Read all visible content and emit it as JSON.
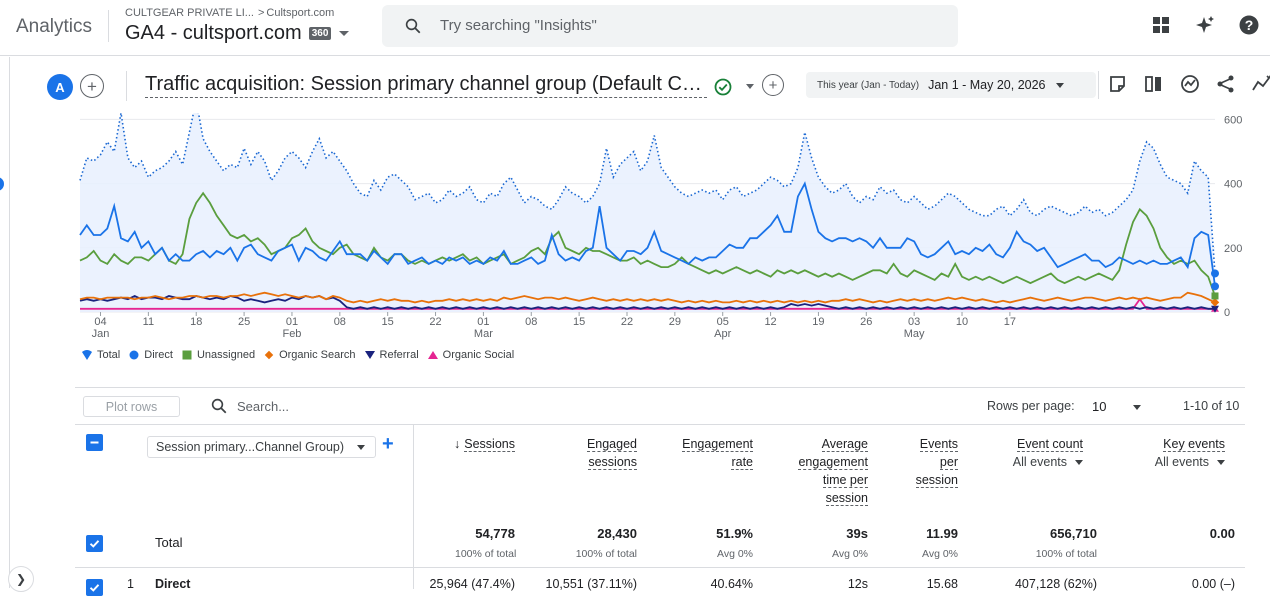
{
  "header": {
    "app_name": "Analytics",
    "account_name": "CULTGEAR PRIVATE LI...",
    "account_sep": ">",
    "property_small": "Cultsport.com",
    "property_name": "GA4 - cultsport.com",
    "badge": "360",
    "search_placeholder": "Try searching \"Insights\""
  },
  "report": {
    "comparison_avatar": "A",
    "title": "Traffic acquisition: Session primary channel group (Default Channel Group)",
    "date_preset": "This year (Jan - Today)",
    "date_range": "Jan 1 - May 20, 2026"
  },
  "chart_data": {
    "type": "line",
    "x_labels": [
      {
        "day": "04",
        "month": "Jan"
      },
      {
        "day": "11",
        "month": ""
      },
      {
        "day": "18",
        "month": ""
      },
      {
        "day": "25",
        "month": ""
      },
      {
        "day": "01",
        "month": "Feb"
      },
      {
        "day": "08",
        "month": ""
      },
      {
        "day": "15",
        "month": ""
      },
      {
        "day": "22",
        "month": ""
      },
      {
        "day": "01",
        "month": "Mar"
      },
      {
        "day": "08",
        "month": ""
      },
      {
        "day": "15",
        "month": ""
      },
      {
        "day": "22",
        "month": ""
      },
      {
        "day": "29",
        "month": ""
      },
      {
        "day": "05",
        "month": "Apr"
      },
      {
        "day": "12",
        "month": ""
      },
      {
        "day": "19",
        "month": ""
      },
      {
        "day": "26",
        "month": ""
      },
      {
        "day": "03",
        "month": "May"
      },
      {
        "day": "10",
        "month": ""
      },
      {
        "day": "17",
        "month": ""
      }
    ],
    "y_ticks": [
      0,
      200,
      400,
      600
    ],
    "ylim": [
      0,
      620
    ],
    "x_start": "2026-01-01",
    "series": [
      {
        "name": "Total",
        "color": "#1a73e8",
        "style": "dotted-area",
        "values": [
          410,
          480,
          470,
          490,
          530,
          500,
          620,
          480,
          450,
          470,
          420,
          440,
          450,
          470,
          500,
          460,
          560,
          660,
          540,
          500,
          470,
          440,
          460,
          450,
          510,
          460,
          500,
          470,
          410,
          440,
          480,
          500,
          480,
          450,
          500,
          540,
          480,
          500,
          470,
          440,
          400,
          370,
          360,
          410,
          380,
          420,
          430,
          410,
          390,
          350,
          360,
          370,
          340,
          350,
          380,
          360,
          370,
          390,
          350,
          340,
          370,
          360,
          400,
          420,
          380,
          340,
          360,
          350,
          330,
          320,
          350,
          390,
          370,
          360,
          340,
          360,
          400,
          510,
          420,
          460,
          480,
          500,
          440,
          470,
          550,
          450,
          420,
          390,
          370,
          360,
          370,
          380,
          370,
          380,
          350,
          380,
          390,
          360,
          370,
          380,
          400,
          420,
          410,
          390,
          400,
          450,
          560,
          480,
          420,
          390,
          370,
          380,
          400,
          360,
          340,
          360,
          350,
          390,
          370,
          380,
          350,
          340,
          360,
          340,
          320,
          330,
          350,
          370,
          360,
          340,
          320,
          310,
          300,
          300,
          320,
          330,
          300,
          320,
          350,
          310,
          300,
          320,
          330,
          320,
          310,
          300,
          310,
          330,
          310,
          320,
          300,
          310,
          330,
          350,
          380,
          470,
          530,
          510,
          460,
          420,
          410,
          400,
          370,
          470,
          440,
          420,
          120
        ]
      },
      {
        "name": "Direct",
        "color": "#1a73e8",
        "values": [
          240,
          270,
          240,
          240,
          260,
          330,
          230,
          220,
          250,
          200,
          220,
          180,
          200,
          160,
          180,
          160,
          160,
          180,
          190,
          170,
          190,
          180,
          200,
          160,
          200,
          210,
          180,
          170,
          160,
          190,
          200,
          210,
          160,
          200,
          190,
          170,
          160,
          190,
          220,
          180,
          180,
          180,
          160,
          190,
          170,
          150,
          180,
          180,
          150,
          160,
          170,
          150,
          160,
          150,
          170,
          160,
          170,
          150,
          160,
          150,
          170,
          160,
          190,
          150,
          150,
          160,
          170,
          150,
          160,
          240,
          180,
          160,
          170,
          160,
          190,
          200,
          330,
          200,
          180,
          160,
          190,
          190,
          180,
          200,
          250,
          190,
          180,
          170,
          160,
          150,
          170,
          160,
          170,
          170,
          190,
          210,
          200,
          200,
          230,
          230,
          250,
          270,
          300,
          250,
          250,
          360,
          400,
          320,
          250,
          230,
          220,
          230,
          230,
          220,
          230,
          220,
          200,
          230,
          200,
          200,
          200,
          230,
          220,
          180,
          170,
          180,
          200,
          220,
          180,
          190,
          180,
          200,
          190,
          210,
          180,
          170,
          200,
          250,
          220,
          210,
          190,
          200,
          170,
          140,
          150,
          160,
          170,
          180,
          160,
          160,
          140,
          150,
          170,
          160,
          150,
          160,
          150,
          160,
          150,
          150,
          160,
          170,
          140,
          230,
          250,
          240,
          80
        ]
      },
      {
        "name": "Unassigned",
        "color": "#5a9e3e",
        "values": [
          160,
          170,
          190,
          160,
          150,
          180,
          160,
          150,
          170,
          170,
          160,
          180,
          200,
          160,
          150,
          180,
          290,
          340,
          370,
          340,
          300,
          270,
          240,
          230,
          240,
          220,
          230,
          210,
          180,
          190,
          200,
          230,
          240,
          260,
          220,
          200,
          190,
          180,
          200,
          210,
          180,
          170,
          160,
          200,
          170,
          160,
          180,
          180,
          160,
          150,
          160,
          150,
          160,
          170,
          160,
          170,
          180,
          160,
          170,
          150,
          160,
          170,
          180,
          150,
          160,
          170,
          190,
          200,
          180,
          230,
          250,
          200,
          190,
          180,
          200,
          190,
          190,
          180,
          170,
          160,
          160,
          170,
          150,
          160,
          150,
          140,
          140,
          150,
          170,
          150,
          140,
          130,
          120,
          130,
          120,
          130,
          140,
          130,
          120,
          130,
          120,
          110,
          130,
          120,
          130,
          120,
          130,
          120,
          110,
          120,
          110,
          120,
          110,
          100,
          110,
          120,
          130,
          130,
          120,
          150,
          120,
          110,
          130,
          120,
          110,
          100,
          120,
          110,
          150,
          110,
          100,
          110,
          100,
          110,
          100,
          90,
          100,
          110,
          100,
          90,
          100,
          110,
          120,
          100,
          90,
          100,
          110,
          100,
          110,
          120,
          110,
          100,
          130,
          210,
          280,
          320,
          300,
          260,
          200,
          170,
          150,
          160,
          150,
          160,
          130,
          110,
          50
        ]
      },
      {
        "name": "Organic Search",
        "color": "#e8710a",
        "values": [
          40,
          45,
          45,
          40,
          45,
          45,
          45,
          45,
          40,
          45,
          45,
          50,
          45,
          40,
          45,
          45,
          50,
          50,
          45,
          50,
          50,
          45,
          50,
          50,
          55,
          50,
          55,
          60,
          55,
          50,
          55,
          50,
          45,
          50,
          45,
          50,
          40,
          50,
          45,
          35,
          30,
          35,
          30,
          35,
          40,
          35,
          40,
          35,
          35,
          30,
          35,
          30,
          35,
          35,
          40,
          35,
          40,
          35,
          40,
          35,
          40,
          35,
          45,
          40,
          45,
          50,
          45,
          40,
          45,
          45,
          40,
          45,
          40,
          35,
          40,
          45,
          40,
          35,
          40,
          35,
          40,
          35,
          40,
          35,
          40,
          35,
          40,
          35,
          30,
          35,
          30,
          35,
          30,
          35,
          30,
          30,
          35,
          30,
          35,
          30,
          35,
          30,
          35,
          30,
          35,
          30,
          35,
          30,
          35,
          30,
          35,
          35,
          40,
          35,
          40,
          35,
          30,
          35,
          30,
          35,
          40,
          35,
          40,
          35,
          40,
          35,
          40,
          45,
          40,
          45,
          40,
          35,
          40,
          35,
          30,
          35,
          30,
          35,
          40,
          45,
          40,
          35,
          40,
          45,
          40,
          35,
          40,
          45,
          45,
          40,
          35,
          40,
          45,
          40,
          45,
          40,
          45,
          40,
          35,
          40,
          45,
          45,
          60,
          55,
          50,
          40,
          30
        ]
      },
      {
        "name": "Referral",
        "color": "#1a237e",
        "values": [
          35,
          40,
          35,
          40,
          35,
          40,
          45,
          40,
          50,
          40,
          45,
          45,
          40,
          50,
          45,
          40,
          40,
          50,
          45,
          40,
          45,
          40,
          50,
          45,
          35,
          40,
          35,
          30,
          35,
          40,
          35,
          45,
          40,
          50,
          45,
          50,
          40,
          45,
          35,
          15,
          10,
          15,
          10,
          15,
          10,
          15,
          10,
          15,
          10,
          15,
          10,
          15,
          10,
          15,
          10,
          15,
          10,
          15,
          10,
          15,
          10,
          15,
          10,
          15,
          10,
          15,
          10,
          15,
          10,
          15,
          10,
          15,
          10,
          15,
          10,
          15,
          10,
          15,
          10,
          15,
          10,
          15,
          10,
          15,
          10,
          15,
          10,
          15,
          10,
          15,
          10,
          15,
          10,
          15,
          10,
          15,
          10,
          15,
          10,
          15,
          10,
          15,
          10,
          15,
          25,
          20,
          25,
          20,
          25,
          20,
          15,
          10,
          15,
          10,
          15,
          10,
          15,
          10,
          15,
          10,
          15,
          10,
          15,
          10,
          15,
          10,
          15,
          10,
          15,
          10,
          15,
          10,
          15,
          10,
          15,
          10,
          15,
          10,
          15,
          10,
          15,
          10,
          15,
          10,
          15,
          10,
          15,
          10,
          15,
          10,
          15,
          10,
          15,
          10,
          15,
          10,
          15,
          10,
          15,
          10,
          15,
          10,
          15,
          10,
          15,
          10,
          10
        ]
      },
      {
        "name": "Organic Social",
        "color": "#e52592",
        "values": [
          10,
          10,
          10,
          10,
          10,
          10,
          10,
          10,
          10,
          10,
          10,
          10,
          10,
          10,
          10,
          10,
          10,
          10,
          10,
          10,
          10,
          10,
          10,
          10,
          10,
          10,
          10,
          10,
          10,
          10,
          10,
          10,
          10,
          10,
          10,
          10,
          10,
          10,
          10,
          10,
          10,
          10,
          10,
          10,
          10,
          10,
          10,
          10,
          10,
          10,
          10,
          10,
          10,
          10,
          10,
          10,
          10,
          10,
          10,
          10,
          10,
          10,
          10,
          10,
          10,
          10,
          10,
          10,
          10,
          10,
          10,
          10,
          10,
          10,
          10,
          10,
          10,
          10,
          10,
          10,
          10,
          10,
          10,
          10,
          10,
          10,
          10,
          10,
          10,
          10,
          10,
          10,
          10,
          10,
          10,
          10,
          10,
          10,
          10,
          10,
          10,
          10,
          10,
          10,
          10,
          10,
          10,
          10,
          10,
          10,
          10,
          10,
          10,
          10,
          10,
          10,
          10,
          10,
          10,
          10,
          10,
          10,
          10,
          10,
          10,
          10,
          10,
          10,
          10,
          10,
          10,
          10,
          10,
          10,
          10,
          10,
          10,
          10,
          10,
          10,
          10,
          10,
          10,
          10,
          10,
          10,
          10,
          10,
          10,
          10,
          10,
          10,
          10,
          10,
          10,
          40,
          10,
          10,
          10,
          10,
          10,
          10,
          10,
          10,
          10,
          10,
          10
        ]
      }
    ]
  },
  "table": {
    "plot_rows": "Plot rows",
    "search_placeholder": "Search...",
    "rows_per_page_label": "Rows per page:",
    "rows_per_page": "10",
    "pager": "1-10 of 10",
    "dimension": "Session primary...Channel Group)",
    "columns": [
      {
        "title": "Sessions"
      },
      {
        "title": "Engaged sessions"
      },
      {
        "title": "Engagement rate"
      },
      {
        "title": "Average engagement time per session"
      },
      {
        "title": "Events per session"
      },
      {
        "title": "Event count",
        "sub": "All events"
      },
      {
        "title": "Key events",
        "sub": "All events"
      }
    ],
    "total": {
      "label": "Total",
      "sessions": "54,778",
      "sessions_sub": "100% of total",
      "engaged": "28,430",
      "engaged_sub": "100% of total",
      "rate": "51.9%",
      "rate_sub": "Avg 0%",
      "avg_time": "39s",
      "avg_time_sub": "Avg 0%",
      "events_per": "11.99",
      "events_per_sub": "Avg 0%",
      "event_count": "656,710",
      "event_count_sub": "100% of total",
      "key_events": "0.00"
    },
    "row1": {
      "index": "1",
      "channel": "Direct",
      "sessions": "25,964 (47.4%)",
      "engaged": "10,551 (37.11%)",
      "rate": "40.64%",
      "avg_time": "12s",
      "events_per": "15.68",
      "event_count": "407,128 (62%)",
      "key_events": "0.00 (–)"
    }
  }
}
